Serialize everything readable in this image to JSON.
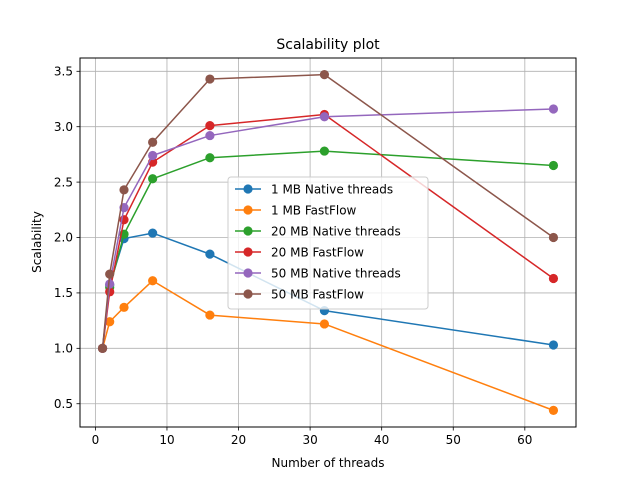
{
  "chart_data": {
    "type": "line",
    "title": "Scalability plot",
    "xlabel": "Number of threads",
    "ylabel": "Scalability",
    "xlim": [
      -2.15,
      67.15
    ],
    "ylim": [
      0.29,
      3.62
    ],
    "xticks": [
      0,
      10,
      20,
      30,
      40,
      50,
      60
    ],
    "yticks": [
      0.5,
      1.0,
      1.5,
      2.0,
      2.5,
      3.0,
      3.5
    ],
    "ytick_labels": [
      "0.5",
      "1.0",
      "1.5",
      "2.0",
      "2.5",
      "3.0",
      "3.5"
    ],
    "grid": true,
    "legend_position": "center",
    "series": [
      {
        "name": "1 MB Native threads",
        "color": "#1f77b4",
        "x": [
          1,
          2,
          4,
          8,
          16,
          32,
          64
        ],
        "y": [
          1.0,
          1.57,
          1.99,
          2.04,
          1.85,
          1.34,
          1.03
        ]
      },
      {
        "name": "1 MB FastFlow",
        "color": "#ff7f0e",
        "x": [
          1,
          2,
          4,
          8,
          16,
          32,
          64
        ],
        "y": [
          1.0,
          1.24,
          1.37,
          1.61,
          1.3,
          1.22,
          0.44
        ]
      },
      {
        "name": "20 MB Native threads",
        "color": "#2ca02c",
        "x": [
          1,
          2,
          4,
          8,
          16,
          32,
          64
        ],
        "y": [
          1.0,
          1.55,
          2.03,
          2.53,
          2.72,
          2.78,
          2.65
        ]
      },
      {
        "name": "20 MB FastFlow",
        "color": "#d62728",
        "x": [
          1,
          2,
          4,
          8,
          16,
          32,
          64
        ],
        "y": [
          1.0,
          1.51,
          2.16,
          2.68,
          3.01,
          3.11,
          1.63
        ]
      },
      {
        "name": "50 MB Native threads",
        "color": "#9467bd",
        "x": [
          1,
          2,
          4,
          8,
          16,
          32,
          64
        ],
        "y": [
          1.0,
          1.58,
          2.27,
          2.74,
          2.92,
          3.09,
          3.16
        ]
      },
      {
        "name": "50 MB FastFlow",
        "color": "#8c564b",
        "x": [
          1,
          2,
          4,
          8,
          16,
          32,
          64
        ],
        "y": [
          1.0,
          1.67,
          2.43,
          2.86,
          3.43,
          3.47,
          2.0
        ]
      }
    ]
  }
}
